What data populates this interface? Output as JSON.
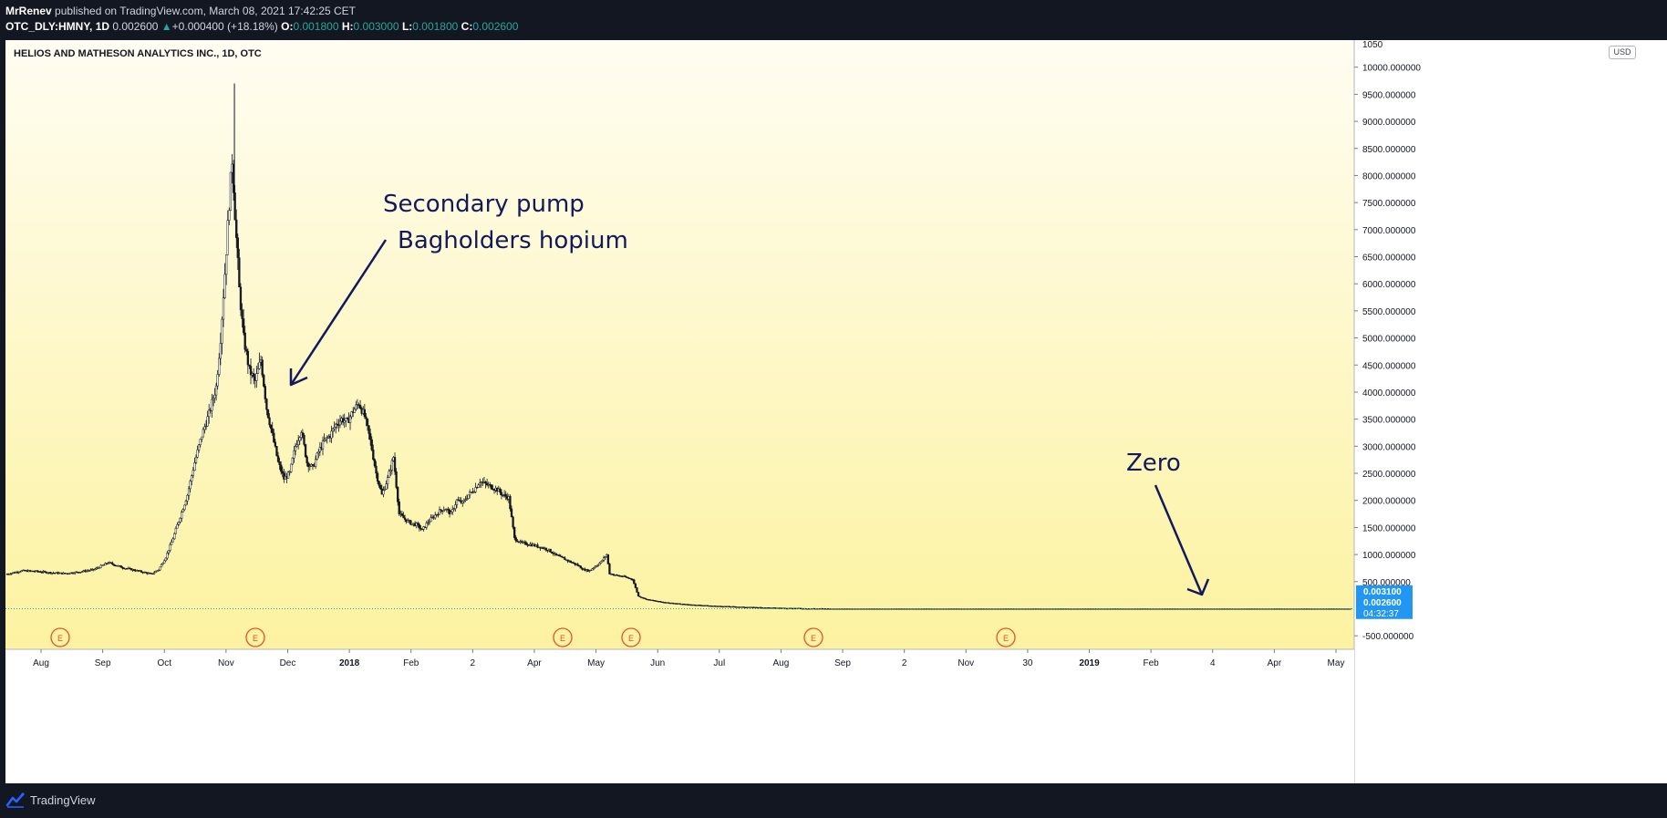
{
  "header": {
    "author": "MrRenev",
    "published_text": "published on TradingView.com, March 08, 2021 17:42:25 CET",
    "symbol": "OTC_DLY:HMNY",
    "timeframe": "1D",
    "last_price": "0.002600",
    "change_arrow": "▲",
    "change": "+0.000400 (+18.18%)",
    "o_label": "O:",
    "o_value": "0.001800",
    "h_label": "H:",
    "h_value": "0.003000",
    "l_label": "L:",
    "l_value": "0.001800",
    "c_label": "C:",
    "c_value": "0.002600"
  },
  "chart_title": "HELIOS AND MATHESON ANALYTICS INC., 1D, OTC",
  "currency_badge": "USD",
  "footer": {
    "brand": "TradingView",
    "logo_icon": "tradingview-logo-icon"
  },
  "colors": {
    "up_candle": "#26a69a",
    "down_candle": "#ef5350",
    "annotation": "#131a5c",
    "price_label_bg": "#2196f3",
    "earnings_marker": "#e0522f",
    "bg_top": "#fffdf2",
    "bg_bottom": "#fcf08e"
  },
  "chart_data": {
    "type": "candlestick",
    "title": "HELIOS AND MATHESON ANALYTICS INC., 1D, OTC",
    "y_axis": {
      "ylim": [
        -750,
        10500
      ],
      "ticks": [
        10000,
        9500,
        9000,
        8500,
        8000,
        7500,
        7000,
        6500,
        6000,
        5500,
        5000,
        4500,
        4000,
        3500,
        3000,
        2500,
        2000,
        1500,
        1000,
        500,
        -500
      ],
      "tick_labels": [
        "10000.000000",
        "9500.000000",
        "9000.000000",
        "8500.000000",
        "8000.000000",
        "7500.000000",
        "7000.000000",
        "6500.000000",
        "6000.000000",
        "5500.000000",
        "5000.000000",
        "4500.000000",
        "4000.000000",
        "3500.000000",
        "3000.000000",
        "2500.000000",
        "2000.000000",
        "1500.000000",
        "1000.000000",
        "500.000000",
        "-500.000000"
      ],
      "top_partial_label": "1050",
      "grid": false
    },
    "x_axis": {
      "tick_labels": [
        "Aug",
        "Sep",
        "Oct",
        "Nov",
        "Dec",
        "2018",
        "Feb",
        "2",
        "Apr",
        "May",
        "Jun",
        "Jul",
        "Aug",
        "Sep",
        "2",
        "Nov",
        "30",
        "2019",
        "Feb",
        "4",
        "Apr",
        "May"
      ],
      "bold_labels": [
        "2018",
        "2019"
      ]
    },
    "price_labels": [
      {
        "text": "0.003100",
        "value": 0.0031
      },
      {
        "text": "0.002600",
        "value": 0.0026
      },
      {
        "text": "04:32:37",
        "kind": "countdown"
      }
    ],
    "earnings_markers": {
      "label": "E",
      "count": 6
    },
    "price_path": [
      [
        0,
        640
      ],
      [
        10,
        700
      ],
      [
        20,
        690
      ],
      [
        30,
        665
      ],
      [
        40,
        650
      ],
      [
        50,
        680
      ],
      [
        60,
        720
      ],
      [
        70,
        850
      ],
      [
        80,
        760
      ],
      [
        90,
        700
      ],
      [
        100,
        640
      ],
      [
        105,
        720
      ],
      [
        110,
        950
      ],
      [
        115,
        1300
      ],
      [
        120,
        1700
      ],
      [
        125,
        2100
      ],
      [
        130,
        2700
      ],
      [
        135,
        3200
      ],
      [
        140,
        3600
      ],
      [
        145,
        4100
      ],
      [
        148,
        5000
      ],
      [
        151,
        6200
      ],
      [
        154,
        7500
      ],
      [
        156,
        8300
      ],
      [
        158,
        7300
      ],
      [
        161,
        5900
      ],
      [
        164,
        5000
      ],
      [
        168,
        4400
      ],
      [
        172,
        4200
      ],
      [
        176,
        4600
      ],
      [
        180,
        3700
      ],
      [
        184,
        3200
      ],
      [
        188,
        2700
      ],
      [
        192,
        2400
      ],
      [
        196,
        2500
      ],
      [
        200,
        3000
      ],
      [
        204,
        3300
      ],
      [
        208,
        2700
      ],
      [
        212,
        2600
      ],
      [
        216,
        2900
      ],
      [
        220,
        3100
      ],
      [
        224,
        3200
      ],
      [
        228,
        3400
      ],
      [
        232,
        3500
      ],
      [
        236,
        3450
      ],
      [
        240,
        3650
      ],
      [
        244,
        3800
      ],
      [
        248,
        3550
      ],
      [
        252,
        3100
      ],
      [
        256,
        2500
      ],
      [
        260,
        2100
      ],
      [
        264,
        2400
      ],
      [
        268,
        2800
      ],
      [
        272,
        1750
      ],
      [
        276,
        1650
      ],
      [
        280,
        1580
      ],
      [
        284,
        1550
      ],
      [
        288,
        1450
      ],
      [
        292,
        1600
      ],
      [
        296,
        1700
      ],
      [
        300,
        1800
      ],
      [
        304,
        1850
      ],
      [
        308,
        1750
      ],
      [
        312,
        2000
      ],
      [
        316,
        1950
      ],
      [
        320,
        2100
      ],
      [
        324,
        2200
      ],
      [
        328,
        2350
      ],
      [
        332,
        2300
      ],
      [
        336,
        2250
      ],
      [
        340,
        2200
      ],
      [
        344,
        2100
      ],
      [
        348,
        2050
      ],
      [
        352,
        1300
      ],
      [
        356,
        1220
      ],
      [
        360,
        1200
      ],
      [
        364,
        1180
      ],
      [
        368,
        1150
      ],
      [
        372,
        1120
      ],
      [
        376,
        1080
      ],
      [
        380,
        1000
      ],
      [
        384,
        950
      ],
      [
        388,
        900
      ],
      [
        392,
        850
      ],
      [
        396,
        800
      ],
      [
        400,
        720
      ],
      [
        404,
        700
      ],
      [
        408,
        780
      ],
      [
        412,
        860
      ],
      [
        416,
        1000
      ],
      [
        418,
        650
      ],
      [
        422,
        620
      ],
      [
        428,
        590
      ],
      [
        434,
        540
      ],
      [
        438,
        230
      ],
      [
        444,
        170
      ],
      [
        455,
        120
      ],
      [
        470,
        80
      ],
      [
        490,
        50
      ],
      [
        510,
        30
      ],
      [
        530,
        15
      ],
      [
        550,
        5
      ],
      [
        570,
        0.0026
      ],
      [
        1000,
        0.0026
      ]
    ]
  },
  "annotations": {
    "secondary_pump": "Secondary pump",
    "bagholders": "Bagholders hopium",
    "zero": "Zero"
  }
}
